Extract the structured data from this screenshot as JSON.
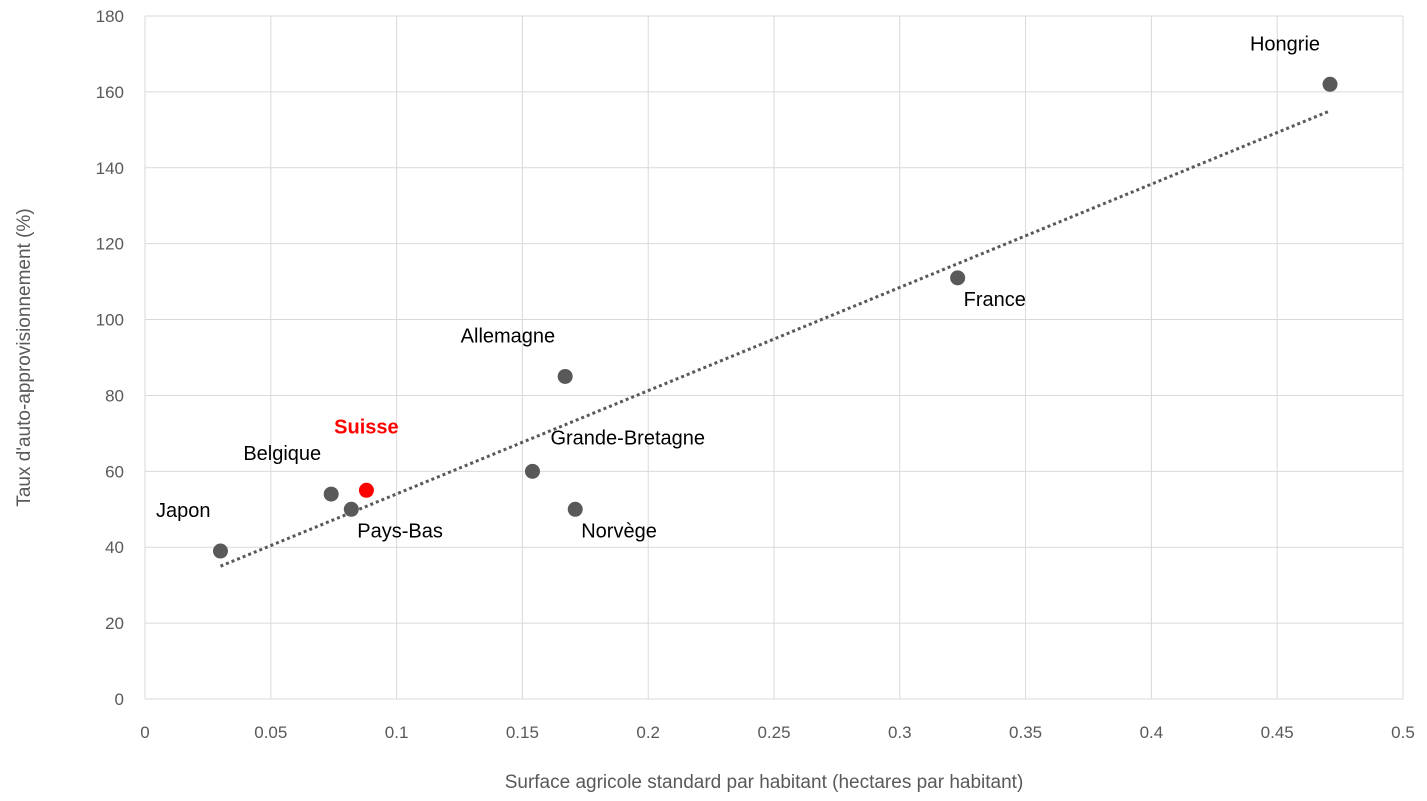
{
  "chart_data": {
    "type": "scatter",
    "title": "",
    "xlabel": "Surface agricole standard par habitant (hectares par habitant)",
    "ylabel": "Taux d'auto-approvisionnement (%)",
    "xlim": [
      0,
      0.5
    ],
    "ylim": [
      0,
      180
    ],
    "xticks": [
      0,
      0.05,
      0.1,
      0.15,
      0.2,
      0.25,
      0.3,
      0.35,
      0.4,
      0.45,
      0.5
    ],
    "xtick_labels": [
      "0",
      "0.05",
      "0.1",
      "0.15",
      "0.2",
      "0.25",
      "0.3",
      "0.35",
      "0.4",
      "0.45",
      "0.5"
    ],
    "yticks": [
      0,
      20,
      40,
      60,
      80,
      100,
      120,
      140,
      160,
      180
    ],
    "ytick_labels": [
      "0",
      "20",
      "40",
      "60",
      "80",
      "100",
      "120",
      "140",
      "160",
      "180"
    ],
    "grid": true,
    "points": [
      {
        "label": "Japon",
        "x": 0.03,
        "y": 39,
        "highlight": false,
        "label_pos": "top-left"
      },
      {
        "label": "Belgique",
        "x": 0.074,
        "y": 54,
        "highlight": false,
        "label_pos": "top-left"
      },
      {
        "label": "Pays-Bas",
        "x": 0.082,
        "y": 50,
        "highlight": false,
        "label_pos": "bottom-right"
      },
      {
        "label": "Suisse",
        "x": 0.088,
        "y": 55,
        "highlight": true,
        "label_pos": "top"
      },
      {
        "label": "Grande-Bretagne",
        "x": 0.154,
        "y": 60,
        "highlight": false,
        "label_pos": "top-right"
      },
      {
        "label": "Allemagne",
        "x": 0.167,
        "y": 85,
        "highlight": false,
        "label_pos": "top-left"
      },
      {
        "label": "Norvège",
        "x": 0.171,
        "y": 50,
        "highlight": false,
        "label_pos": "bottom-right"
      },
      {
        "label": "France",
        "x": 0.323,
        "y": 111,
        "highlight": false,
        "label_pos": "bottom-right"
      },
      {
        "label": "Hongrie",
        "x": 0.471,
        "y": 162,
        "highlight": false,
        "label_pos": "top-left"
      }
    ],
    "trendline": {
      "type": "linear",
      "style": "dotted",
      "x_start": 0.03,
      "y_start": 35,
      "x_end": 0.471,
      "y_end": 155
    },
    "colors": {
      "point": "#595959",
      "highlight": "#ff0000",
      "trendline": "#595959",
      "grid": "#d9d9d9",
      "axis_text": "#595959"
    }
  }
}
